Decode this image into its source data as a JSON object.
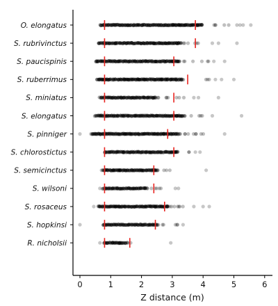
{
  "chart_data": {
    "type": "scatter",
    "subtype": "strip-plot",
    "title": "",
    "xlabel": "Z distance (m)",
    "ylabel": "",
    "xlim": [
      -0.25,
      6.3
    ],
    "xticks": [
      0,
      1,
      2,
      3,
      4,
      5,
      6
    ],
    "grid": false,
    "point_color": "#000000",
    "marker_color": "#e8231f",
    "categories": [
      "O. elongatus",
      "S. rubrivinctus",
      "S. paucispinis",
      "S. ruberrimus",
      "S. miniatus",
      "S. elongatus",
      "S. pinniger",
      "S. chlorostictus",
      "S. semicinctus",
      "S. wilsoni",
      "S. rosaceus",
      "S. hopkinsi",
      "R. nicholsii"
    ],
    "series": [
      {
        "category": "O. elongatus",
        "dense_range": [
          0.65,
          4.0
        ],
        "sparse_range": [
          3.0,
          5.0
        ],
        "outliers": [
          5.1,
          5.2,
          5.3,
          5.55
        ],
        "markers": [
          0.8,
          3.75
        ]
      },
      {
        "category": "S. rubrivinctus",
        "dense_range": [
          0.6,
          3.3
        ],
        "sparse_range": [
          2.0,
          3.9
        ],
        "outliers": [
          4.3,
          4.5,
          5.1
        ],
        "markers": [
          0.8,
          3.75
        ]
      },
      {
        "category": "S. paucispinis",
        "dense_range": [
          0.5,
          3.25
        ],
        "sparse_range": [
          2.9,
          4.25
        ],
        "outliers": [
          4.35,
          4.7
        ],
        "markers": [
          0.8,
          3.05
        ]
      },
      {
        "category": "S. ruberrimus",
        "dense_range": [
          0.55,
          3.35
        ],
        "sparse_range": [
          0.3,
          4.3
        ],
        "outliers": [
          4.4,
          4.6,
          5.0
        ],
        "markers": [
          0.8,
          3.5
        ]
      },
      {
        "category": "S. miniatus",
        "dense_range": [
          0.65,
          2.5
        ],
        "sparse_range": [
          2.4,
          3.5
        ],
        "outliers": [
          3.7,
          3.85,
          4.5
        ],
        "markers": [
          0.8,
          3.05
        ]
      },
      {
        "category": "S. elongatus",
        "dense_range": [
          0.5,
          3.4
        ],
        "sparse_range": [
          3.1,
          4.1
        ],
        "outliers": [
          4.3,
          5.25
        ],
        "markers": [
          0.8,
          3.05
        ]
      },
      {
        "category": "S. pinniger",
        "dense_range": [
          0.4,
          3.2
        ],
        "sparse_range": [
          0.3,
          4.2
        ],
        "outliers": [
          0.0,
          4.7
        ],
        "markers": [
          0.8,
          2.85
        ]
      },
      {
        "category": "S. chlorostictus",
        "dense_range": [
          0.8,
          3.2
        ],
        "sparse_range": [
          3.0,
          3.6
        ],
        "outliers": [
          3.75,
          3.9
        ],
        "markers": [
          0.8,
          3.05
        ]
      },
      {
        "category": "S. semicinctus",
        "dense_range": [
          0.75,
          2.55
        ],
        "sparse_range": [
          0.65,
          3.0
        ],
        "outliers": [
          4.1
        ],
        "markers": [
          0.8,
          2.4
        ]
      },
      {
        "category": "S. wilsoni",
        "dense_range": [
          0.75,
          2.2
        ],
        "sparse_range": [
          2.2,
          2.95
        ],
        "outliers": [
          0.65,
          3.1,
          3.2
        ],
        "markers": [
          0.8,
          2.4
        ]
      },
      {
        "category": "S. rosaceus",
        "dense_range": [
          0.6,
          2.9
        ],
        "sparse_range": [
          0.5,
          3.5
        ],
        "outliers": [
          0.45,
          3.7,
          4.0,
          4.2
        ],
        "markers": [
          0.8,
          2.75
        ]
      },
      {
        "category": "S. hopkinsi",
        "dense_range": [
          0.75,
          2.55
        ],
        "sparse_range": [
          2.5,
          3.2
        ],
        "outliers": [
          0.0,
          3.35
        ],
        "markers": [
          0.8,
          2.45
        ]
      },
      {
        "category": "R. nicholsii",
        "dense_range": [
          0.8,
          1.55
        ],
        "sparse_range": [
          0.75,
          1.65
        ],
        "outliers": [
          0.65,
          2.95
        ],
        "markers": [
          0.8,
          1.62
        ]
      }
    ]
  }
}
